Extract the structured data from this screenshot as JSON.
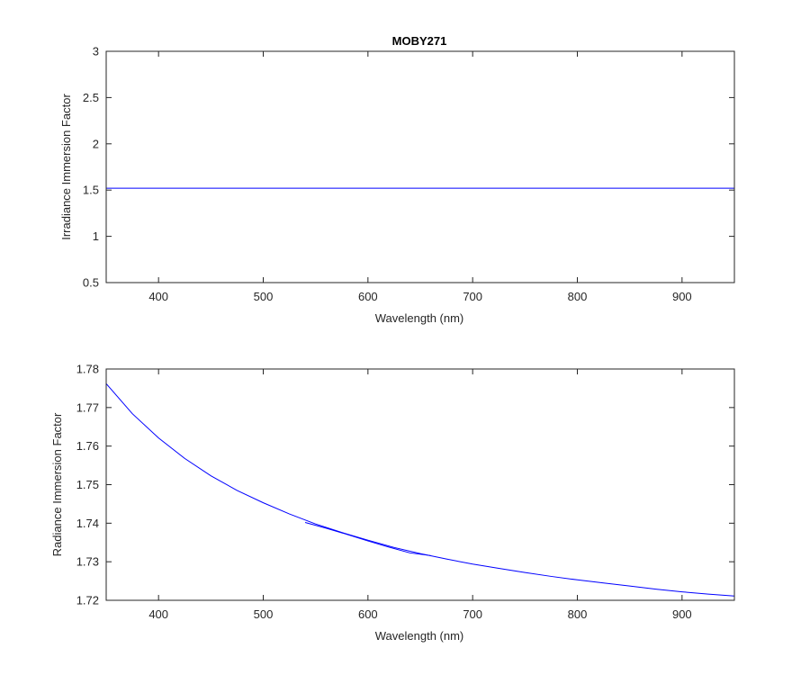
{
  "chart_data": [
    {
      "type": "line",
      "title": "MOBY271",
      "xlabel": "Wavelength  (nm)",
      "ylabel": "Irradiance Immersion Factor",
      "xlim": [
        350,
        950
      ],
      "ylim": [
        0.5,
        3
      ],
      "xticks": [
        400,
        500,
        600,
        700,
        800,
        900
      ],
      "yticks": [
        0.5,
        1,
        1.5,
        2,
        2.5,
        3
      ],
      "color": "#0000ff",
      "series": [
        {
          "x": [
            350,
            950
          ],
          "y": [
            1.52,
            1.52
          ]
        }
      ]
    },
    {
      "type": "line",
      "title": "",
      "xlabel": "Wavelength  (nm)",
      "ylabel": "Radiance Immersion Factor",
      "xlim": [
        350,
        950
      ],
      "ylim": [
        1.72,
        1.78
      ],
      "xticks": [
        400,
        500,
        600,
        700,
        800,
        900
      ],
      "yticks": [
        1.72,
        1.73,
        1.74,
        1.75,
        1.76,
        1.77,
        1.78
      ],
      "color": "#0000ff",
      "series": [
        {
          "x": [
            350,
            375,
            400,
            425,
            450,
            475,
            500,
            525,
            550,
            575,
            600,
            625,
            650,
            675,
            700,
            725,
            750,
            775,
            800,
            825,
            850,
            875,
            900,
            925,
            950
          ],
          "y": [
            1.7762,
            1.7684,
            1.7621,
            1.7568,
            1.7523,
            1.7485,
            1.7453,
            1.7424,
            1.7398,
            1.7376,
            1.7356,
            1.7337,
            1.7321,
            1.7307,
            1.7294,
            1.7283,
            1.7272,
            1.7262,
            1.7253,
            1.7245,
            1.7237,
            1.7229,
            1.7222,
            1.7216,
            1.7211
          ]
        },
        {
          "x": [
            540,
            560,
            580,
            600,
            620,
            640,
            660
          ],
          "y": [
            1.7402,
            1.7387,
            1.7371,
            1.7354,
            1.7338,
            1.7323,
            1.7316
          ]
        }
      ]
    }
  ]
}
